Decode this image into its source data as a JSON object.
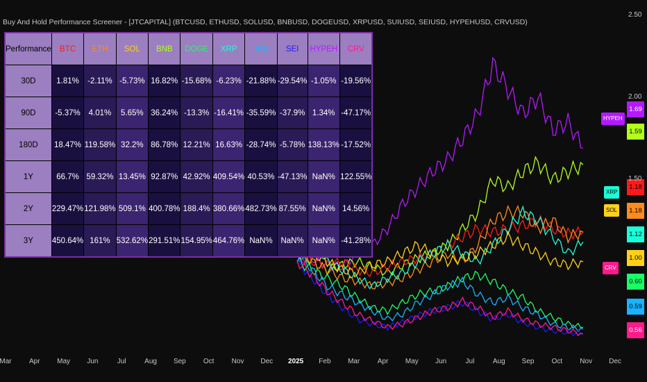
{
  "title": "Buy And Hold Performance Screener - [JTCAPITAL] (BTCUSD, ETHUSD, SOLUSD, BNBUSD, DOGEUSD, XRPUSD, SUIUSD, SEIUSD, HYPEHUSD, CRVUSD)",
  "table": {
    "corner": "Performance",
    "coins": [
      {
        "name": "BTC",
        "color": "#ff1a1a"
      },
      {
        "name": "ETH",
        "color": "#ff8c1a"
      },
      {
        "name": "SOL",
        "color": "#ffd11a"
      },
      {
        "name": "BNB",
        "color": "#b3ff1a"
      },
      {
        "name": "DOGE",
        "color": "#1aff66"
      },
      {
        "name": "XRP",
        "color": "#1affd9"
      },
      {
        "name": "SUI",
        "color": "#1ab3ff"
      },
      {
        "name": "SEI",
        "color": "#1a1aff"
      },
      {
        "name": "HYPEH",
        "color": "#b31aff"
      },
      {
        "name": "CRV",
        "color": "#ff1a8c"
      }
    ],
    "rows": [
      {
        "label": "30D",
        "values": [
          "1.81%",
          "-2.11%",
          "-5.73%",
          "16.82%",
          "-15.68%",
          "-6.23%",
          "-21.88%",
          "-29.54%",
          "-1.05%",
          "-19.56%"
        ]
      },
      {
        "label": "90D",
        "values": [
          "-5.37%",
          "4.01%",
          "5.65%",
          "36.24%",
          "-13.3%",
          "-16.41%",
          "-35.59%",
          "-37.9%",
          "1.34%",
          "-47.17%"
        ]
      },
      {
        "label": "180D",
        "values": [
          "18.47%",
          "119.58%",
          "32.2%",
          "86.78%",
          "12.21%",
          "16.63%",
          "-28.74%",
          "-5.78%",
          "138.13%",
          "-17.52%"
        ]
      },
      {
        "label": "1Y",
        "values": [
          "66.7%",
          "59.32%",
          "13.45%",
          "92.87%",
          "42.92%",
          "409.54%",
          "40.53%",
          "-47.13%",
          "NaN%",
          "122.55%"
        ]
      },
      {
        "label": "2Y",
        "values": [
          "229.47%",
          "121.98%",
          "509.1%",
          "400.78%",
          "188.4%",
          "380.66%",
          "482.73%",
          "87.55%",
          "NaN%",
          "14.56%"
        ]
      },
      {
        "label": "3Y",
        "values": [
          "450.64%",
          "161%",
          "532.62%",
          "291.51%",
          "154.95%",
          "464.76%",
          "NaN%",
          "NaN%",
          "NaN%",
          "-41.28%"
        ]
      }
    ]
  },
  "chart_data": {
    "type": "line",
    "x_ticks": [
      "Mar",
      "Apr",
      "May",
      "Jun",
      "Jul",
      "Aug",
      "Sep",
      "Oct",
      "Nov",
      "Dec",
      "2025",
      "Feb",
      "Mar",
      "Apr",
      "May",
      "Jun",
      "Jul",
      "Aug",
      "Sep",
      "Oct",
      "Nov",
      "Dec"
    ],
    "y_ticks": [
      "2.50",
      "2.00",
      "1.50"
    ],
    "ylim": [
      0.5,
      2.55
    ],
    "series": [
      {
        "name": "HYPEH",
        "color": "#b31aff",
        "last": 1.69,
        "label": "1.69",
        "values": [
          1.0,
          1.02,
          0.98,
          0.97,
          1.05,
          1.1,
          1.2,
          1.35,
          1.45,
          1.55,
          1.62,
          1.75,
          1.9,
          2.2,
          2.05,
          1.9,
          2.0,
          1.8,
          1.85,
          1.69
        ]
      },
      {
        "name": "BNB",
        "color": "#b3ff1a",
        "last": 1.59,
        "label": "1.59",
        "values": [
          1.05,
          1.0,
          0.95,
          0.98,
          1.0,
          0.97,
          0.93,
          0.98,
          1.02,
          1.05,
          1.1,
          1.2,
          1.3,
          1.5,
          1.45,
          1.55,
          1.6,
          1.5,
          1.55,
          1.59
        ]
      },
      {
        "name": "BTC",
        "color": "#ff1a1a",
        "last": 1.18,
        "label": "1.18",
        "values": [
          1.05,
          1.0,
          0.98,
          1.0,
          0.95,
          0.93,
          0.97,
          1.0,
          1.02,
          1.05,
          1.1,
          1.15,
          1.2,
          1.18,
          1.2,
          1.22,
          1.25,
          1.2,
          1.17,
          1.18
        ]
      },
      {
        "name": "ETH",
        "color": "#ff8c1a",
        "last": 1.18,
        "label": "1.18",
        "values": [
          1.1,
          1.0,
          0.95,
          0.9,
          0.88,
          0.85,
          0.87,
          0.9,
          0.95,
          1.0,
          1.05,
          1.0,
          1.1,
          1.25,
          1.3,
          1.3,
          1.2,
          1.25,
          1.15,
          1.18
        ]
      },
      {
        "name": "XRP",
        "color": "#1affd9",
        "last": 1.12,
        "label": "1.12",
        "values": [
          1.3,
          1.15,
          1.0,
          0.95,
          0.9,
          0.85,
          0.9,
          0.93,
          1.0,
          1.05,
          1.1,
          1.05,
          1.0,
          1.1,
          1.2,
          1.3,
          1.25,
          1.15,
          1.05,
          1.12
        ]
      },
      {
        "name": "SOL",
        "color": "#ffd11a",
        "last": 1.0,
        "label": "1.00",
        "values": [
          1.1,
          1.05,
          1.0,
          0.95,
          0.93,
          0.98,
          1.0,
          1.05,
          1.1,
          1.05,
          1.0,
          1.02,
          1.05,
          1.1,
          1.15,
          1.1,
          1.05,
          1.0,
          0.98,
          1.0
        ]
      },
      {
        "name": "DOGE",
        "color": "#1aff66",
        "last": 0.6,
        "label": "0.60",
        "values": [
          1.0,
          0.95,
          0.9,
          0.85,
          0.78,
          0.72,
          0.7,
          0.75,
          0.8,
          0.82,
          0.85,
          0.9,
          0.92,
          0.88,
          0.82,
          0.78,
          0.7,
          0.66,
          0.62,
          0.6
        ]
      },
      {
        "name": "SUI",
        "color": "#1ab3ff",
        "last": 0.59,
        "label": "0.59",
        "values": [
          1.05,
          0.95,
          0.85,
          0.8,
          0.75,
          0.7,
          0.65,
          0.68,
          0.75,
          0.8,
          0.85,
          0.88,
          0.8,
          0.75,
          0.78,
          0.72,
          0.68,
          0.62,
          0.6,
          0.59
        ]
      },
      {
        "name": "SEI",
        "color": "#1a1aff",
        "last": 0.56,
        "label": "0.56",
        "values": [
          1.0,
          0.9,
          0.8,
          0.72,
          0.65,
          0.62,
          0.6,
          0.63,
          0.67,
          0.7,
          0.72,
          0.75,
          0.7,
          0.65,
          0.68,
          0.63,
          0.6,
          0.58,
          0.57,
          0.56
        ]
      },
      {
        "name": "CRV",
        "color": "#ff1a8c",
        "last": 0.56,
        "label": "0.56",
        "values": [
          1.0,
          0.92,
          0.82,
          0.75,
          0.68,
          0.64,
          0.6,
          0.62,
          0.66,
          0.7,
          0.72,
          0.76,
          0.72,
          0.66,
          0.7,
          0.65,
          0.62,
          0.6,
          0.58,
          0.56
        ]
      }
    ]
  },
  "tags": {
    "hype": "HYPEH",
    "xrp": "XRP",
    "sol": "SOL",
    "crv": "CRV"
  }
}
